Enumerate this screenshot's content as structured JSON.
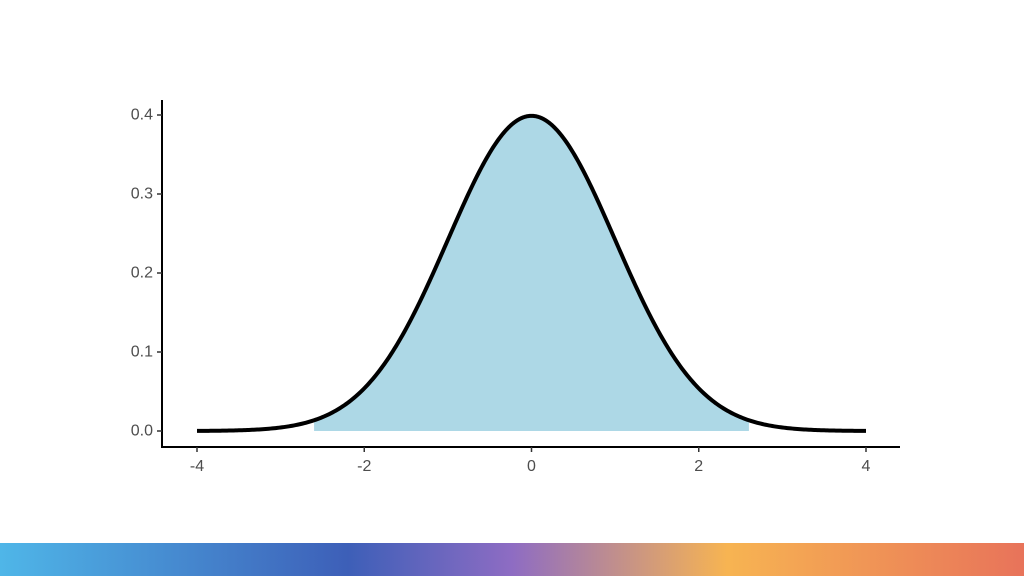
{
  "chart_data": {
    "type": "area",
    "title": "",
    "xlabel": "",
    "ylabel": "",
    "xlim": [
      -4,
      4
    ],
    "ylim": [
      0,
      0.4
    ],
    "x_ticks": [
      -4,
      -2,
      0,
      2,
      4
    ],
    "y_ticks": [
      0.0,
      0.1,
      0.2,
      0.3,
      0.4
    ],
    "x_tick_labels": [
      "-4",
      "-2",
      "0",
      "2",
      "4"
    ],
    "y_tick_labels": [
      "0.0",
      "0.1",
      "0.2",
      "0.3",
      "0.4"
    ],
    "grid": false,
    "series": [
      {
        "x": [
          -4.0,
          -3.5,
          -3.0,
          -2.5,
          -2.0,
          -1.5,
          -1.0,
          -0.5,
          0.0,
          0.5,
          1.0,
          1.5,
          2.0,
          2.5,
          3.0,
          3.5,
          4.0
        ],
        "y": [
          0.0001,
          0.0009,
          0.0044,
          0.0175,
          0.054,
          0.1295,
          0.242,
          0.3521,
          0.3989,
          0.3521,
          0.242,
          0.1295,
          0.054,
          0.0175,
          0.0044,
          0.0009,
          0.0001
        ],
        "fill_range": [
          -2.6,
          2.6
        ]
      }
    ],
    "colors": {
      "fill": "#add8e6",
      "line": "#000000",
      "axis": "#000000",
      "tick_text": "#4d4d4d"
    }
  },
  "footer": {
    "gradient_colors": [
      "#4fb6e8",
      "#3d5fb8",
      "#8e6cc3",
      "#f7b452",
      "#e8735a"
    ]
  }
}
